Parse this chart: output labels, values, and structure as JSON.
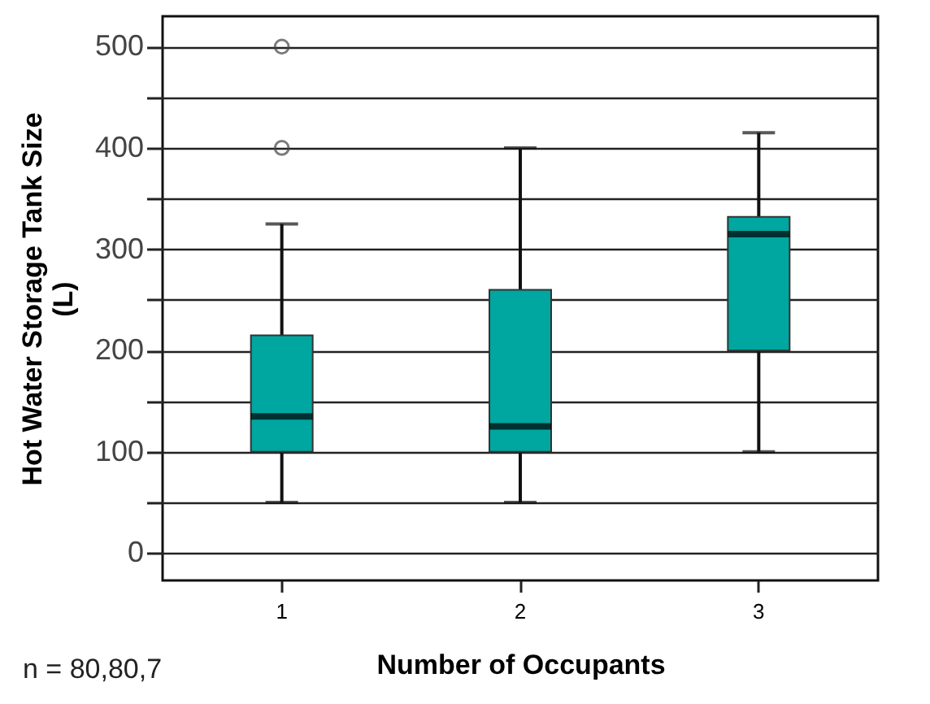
{
  "chart_data": {
    "type": "box",
    "xlabel": "Number of Occupants",
    "ylabel": "Hot Water Storage Tank Size\n(L)",
    "annotations": [
      "n = 80,80,7"
    ],
    "categories": [
      "1",
      "2",
      "3"
    ],
    "series": [
      {
        "color": "#00a6a0",
        "boxes": [
          {
            "low": 50,
            "q1": 100,
            "median": 135,
            "q3": 215,
            "high": 325,
            "outliers": [
              400,
              500
            ]
          },
          {
            "low": 50,
            "q1": 100,
            "median": 125,
            "q3": 260,
            "high": 400
          },
          {
            "low": 100,
            "q1": 200,
            "median": 315,
            "q3": 332,
            "high": 415
          }
        ]
      }
    ],
    "ylim": [
      -27,
      530
    ],
    "yticks": [
      0,
      {
        "value": 50,
        "label": null
      },
      100,
      {
        "value": 150,
        "label": null
      },
      200,
      {
        "value": 250,
        "label": null
      },
      300,
      {
        "value": 350,
        "label": null
      },
      400,
      {
        "value": 450,
        "label": null
      },
      500
    ],
    "grid": "y",
    "marker": "circle"
  }
}
